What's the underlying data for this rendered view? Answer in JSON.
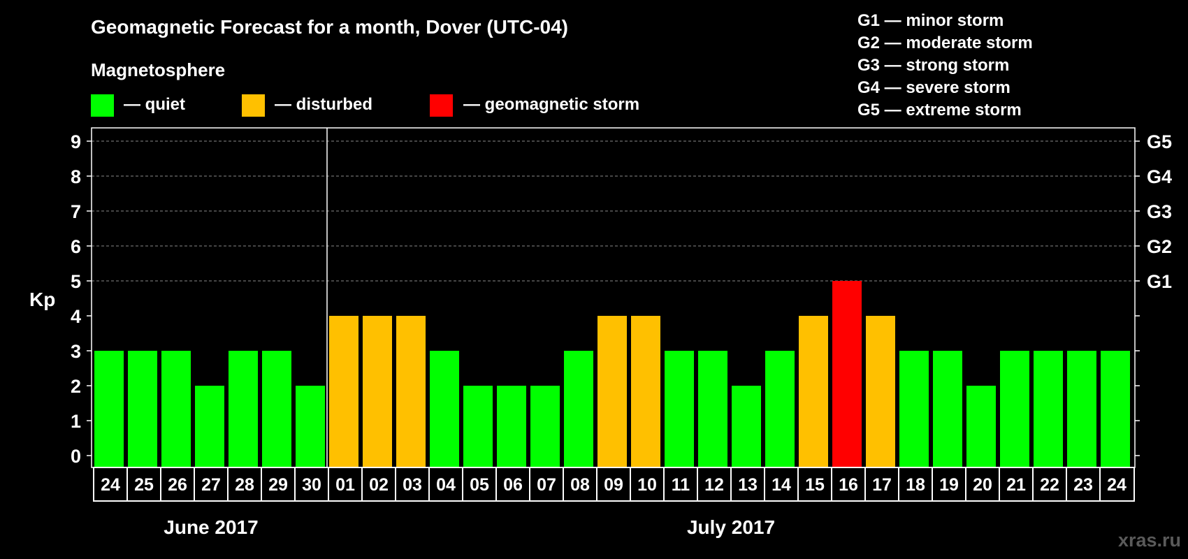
{
  "chart_data": {
    "type": "bar",
    "title": "Geomagnetic Forecast for a month, Dover (UTC-04)",
    "legend_title": "Magnetosphere",
    "legend": [
      {
        "label": "— quiet",
        "color": "#00ff00"
      },
      {
        "label": "— disturbed",
        "color": "#ffc000"
      },
      {
        "label": "— geomagnetic storm",
        "color": "#ff0000"
      }
    ],
    "storm_levels": [
      "G1 — minor storm",
      "G2 — moderate storm",
      "G3 — strong storm",
      "G4 — severe storm",
      "G5 — extreme storm"
    ],
    "ylabel": "Kp",
    "ylim": [
      0,
      9
    ],
    "yticks": [
      "0",
      "1",
      "2",
      "3",
      "4",
      "5",
      "6",
      "7",
      "8",
      "9"
    ],
    "right_ticks": [
      {
        "value": 5,
        "label": "G1"
      },
      {
        "value": 6,
        "label": "G2"
      },
      {
        "value": 7,
        "label": "G3"
      },
      {
        "value": 8,
        "label": "G4"
      },
      {
        "value": 9,
        "label": "G5"
      }
    ],
    "categories": [
      "24",
      "25",
      "26",
      "27",
      "28",
      "29",
      "30",
      "01",
      "02",
      "03",
      "04",
      "05",
      "06",
      "07",
      "08",
      "09",
      "10",
      "11",
      "12",
      "13",
      "14",
      "15",
      "16",
      "17",
      "18",
      "19",
      "20",
      "21",
      "22",
      "23",
      "24"
    ],
    "values": [
      3,
      3,
      3,
      2,
      3,
      3,
      2,
      4,
      4,
      4,
      3,
      2,
      2,
      2,
      3,
      4,
      4,
      3,
      3,
      2,
      3,
      4,
      5,
      4,
      3,
      3,
      2,
      3,
      3,
      3,
      3
    ],
    "colors": {
      "quiet": "#00ff00",
      "disturbed": "#ffc000",
      "storm": "#ff0000"
    },
    "months": [
      {
        "label": "June 2017",
        "count": 7
      },
      {
        "label": "July 2017",
        "count": 24
      }
    ],
    "grid": true
  },
  "watermark": "xras.ru"
}
